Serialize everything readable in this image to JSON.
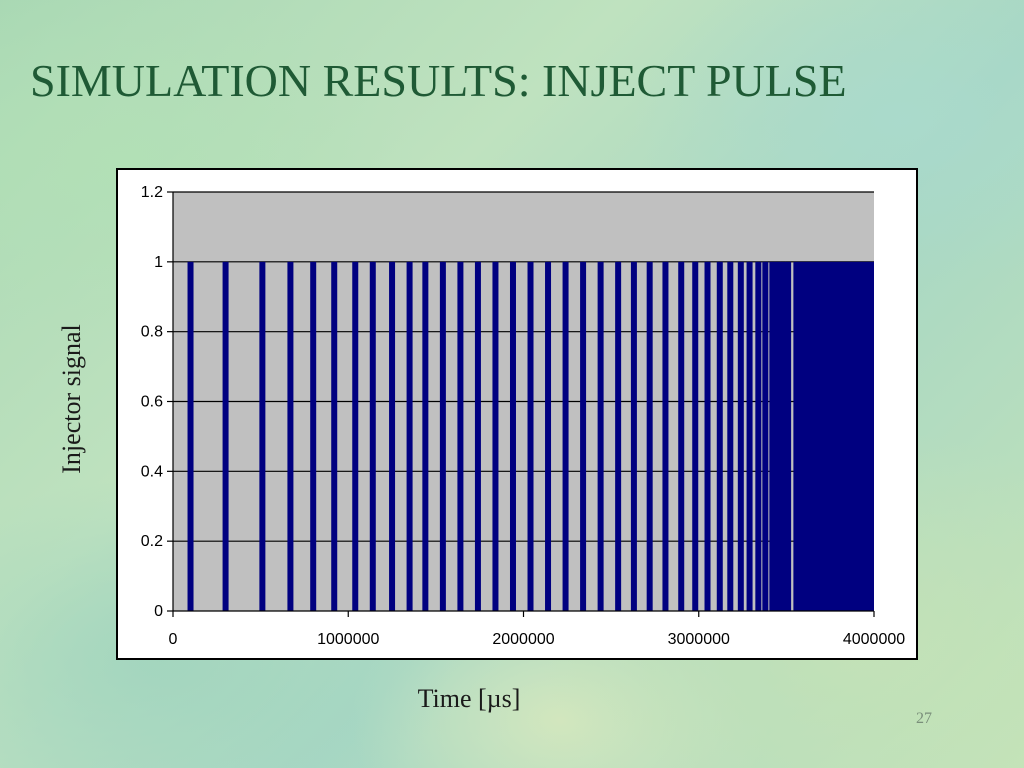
{
  "slide": {
    "title": "SIMULATION RESULTS: INJECT PULSE",
    "page_number": "27"
  },
  "chart_data": {
    "type": "bar",
    "title": "",
    "xlabel": "Time [µs]",
    "ylabel": "Injector signal",
    "xlim": [
      0,
      4000000
    ],
    "ylim": [
      0,
      1.2
    ],
    "x_ticks": [
      0,
      1000000,
      2000000,
      3000000,
      4000000
    ],
    "y_ticks": [
      0,
      0.2,
      0.4,
      0.6,
      0.8,
      1,
      1.2
    ],
    "grid": true,
    "legend": "none",
    "series": [
      {
        "x": [
          100000,
          300000,
          510000,
          670000,
          800000,
          920000,
          1040000,
          1140000,
          1250000,
          1350000,
          1440000,
          1540000,
          1640000,
          1740000,
          1840000,
          1940000,
          2040000,
          2140000,
          2240000,
          2340000,
          2440000,
          2540000,
          2630000,
          2720000,
          2810000,
          2900000,
          2980000,
          3050000,
          3120000,
          3180000,
          3240000,
          3290000,
          3340000,
          3380000,
          3420000,
          3450000,
          3480000,
          3510000
        ],
        "values": [
          1,
          1,
          1,
          1,
          1,
          1,
          1,
          1,
          1,
          1,
          1,
          1,
          1,
          1,
          1,
          1,
          1,
          1,
          1,
          1,
          1,
          1,
          1,
          1,
          1,
          1,
          1,
          1,
          1,
          1,
          1,
          1,
          1,
          1,
          1,
          1,
          1,
          1
        ],
        "continuous_on_interval": [
          3540000,
          4000000
        ]
      }
    ],
    "colors": {
      "bar": "#000080",
      "plot_background": "#c0c0c0",
      "gridline": "#000000"
    }
  }
}
